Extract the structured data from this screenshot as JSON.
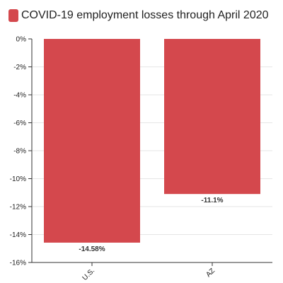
{
  "chart_data": {
    "type": "bar",
    "title": "COVID-19 employment losses through April 2020",
    "categories": [
      "U.S.",
      "AZ"
    ],
    "values": [
      -14.58,
      -11.1
    ],
    "data_labels": [
      "-14.58%",
      "-11.1%"
    ],
    "series": [
      {
        "values": [
          -14.58,
          -11.1
        ]
      }
    ],
    "xlabel": "",
    "ylabel": "",
    "ylim": [
      -16,
      0
    ],
    "yticks": [
      0,
      -2,
      -4,
      -6,
      -8,
      -10,
      -12,
      -14,
      -16
    ],
    "ytick_labels": [
      "0%",
      "-2%",
      "-4%",
      "-6%",
      "-8%",
      "-10%",
      "-12%",
      "-14%",
      "-16%"
    ],
    "grid": true,
    "legend": "top-left",
    "colors": {
      "bar": "#d4484d",
      "axis": "#333333",
      "grid": "#e6e6e6"
    }
  }
}
